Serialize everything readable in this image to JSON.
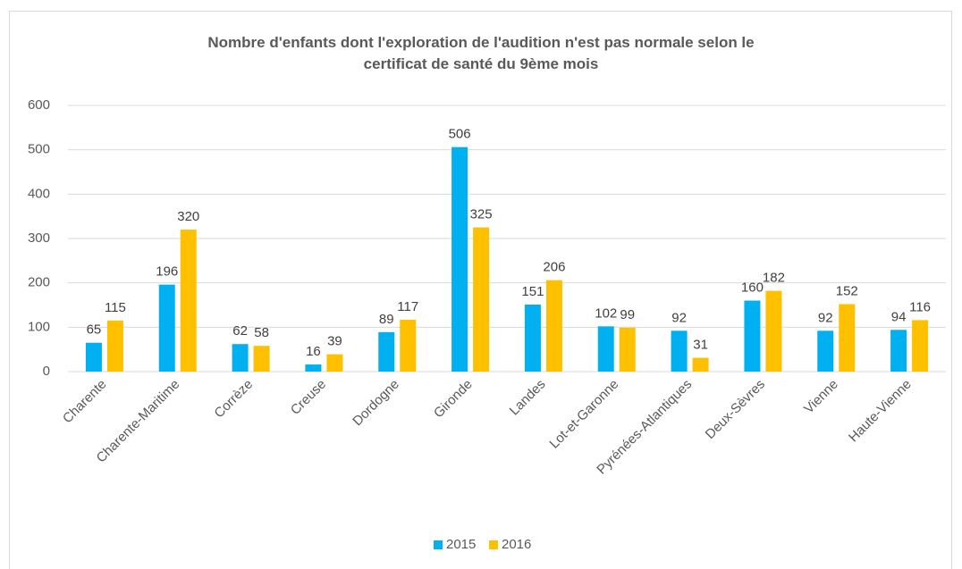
{
  "chart_data": {
    "type": "bar",
    "title": "Nombre d'enfants dont l'exploration de l'audition n'est pas normale selon le certificat de santé du 9ème mois",
    "categories": [
      "Charente",
      "Charente-Maritime",
      "Corrèze",
      "Creuse",
      "Dordogne",
      "Gironde",
      "Landes",
      "Lot-et-Garonne",
      "Pyrénées-Atlantiques",
      "Deux-Sèvres",
      "Vienne",
      "Haute-Vienne"
    ],
    "series": [
      {
        "name": "2015",
        "color": "#00b0f0",
        "values": [
          65,
          196,
          62,
          16,
          89,
          506,
          151,
          102,
          92,
          160,
          92,
          94
        ]
      },
      {
        "name": "2016",
        "color": "#ffc000",
        "values": [
          115,
          320,
          58,
          39,
          117,
          325,
          206,
          99,
          31,
          182,
          152,
          116
        ]
      }
    ],
    "ylim": [
      0,
      600
    ],
    "yticks": [
      0,
      100,
      200,
      300,
      400,
      500,
      600
    ],
    "grid": true,
    "legend": "bottom"
  }
}
